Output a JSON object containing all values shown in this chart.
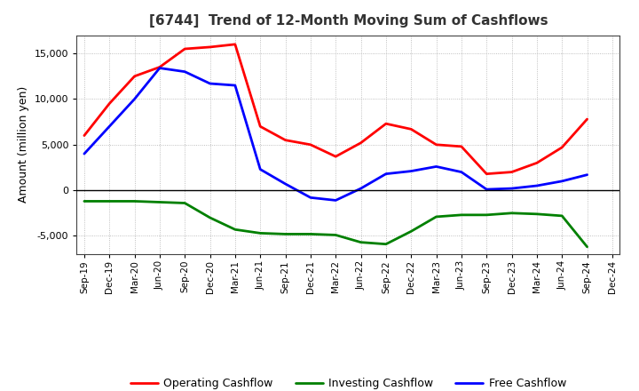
{
  "title": "[6744]  Trend of 12-Month Moving Sum of Cashflows",
  "ylabel": "Amount (million yen)",
  "x_labels": [
    "Sep-19",
    "Dec-19",
    "Mar-20",
    "Jun-20",
    "Sep-20",
    "Dec-20",
    "Mar-21",
    "Jun-21",
    "Sep-21",
    "Dec-21",
    "Mar-22",
    "Jun-22",
    "Sep-22",
    "Dec-22",
    "Mar-23",
    "Jun-23",
    "Sep-23",
    "Dec-23",
    "Mar-24",
    "Jun-24",
    "Sep-24",
    "Dec-24"
  ],
  "operating": [
    6000,
    9500,
    12500,
    13500,
    15500,
    15700,
    16000,
    7000,
    5500,
    5000,
    3700,
    5200,
    7300,
    6700,
    5000,
    4800,
    1800,
    2000,
    3000,
    4700,
    7800,
    null
  ],
  "investing": [
    -1200,
    -1200,
    -1200,
    -1300,
    -1400,
    -3000,
    -4300,
    -4700,
    -4800,
    -4800,
    -4900,
    -5700,
    -5900,
    -4500,
    -2900,
    -2700,
    -2700,
    -2500,
    -2600,
    -2800,
    -6200,
    null
  ],
  "free": [
    4000,
    7000,
    10000,
    13400,
    13000,
    11700,
    11500,
    2300,
    700,
    -800,
    -1100,
    200,
    1800,
    2100,
    2600,
    2000,
    100,
    200,
    500,
    1000,
    1700,
    null
  ],
  "operating_color": "#ff0000",
  "investing_color": "#008000",
  "free_color": "#0000ff",
  "ylim": [
    -7000,
    17000
  ],
  "yticks": [
    -5000,
    0,
    5000,
    10000,
    15000
  ],
  "background_color": "#ffffff",
  "grid_color": "#999999"
}
